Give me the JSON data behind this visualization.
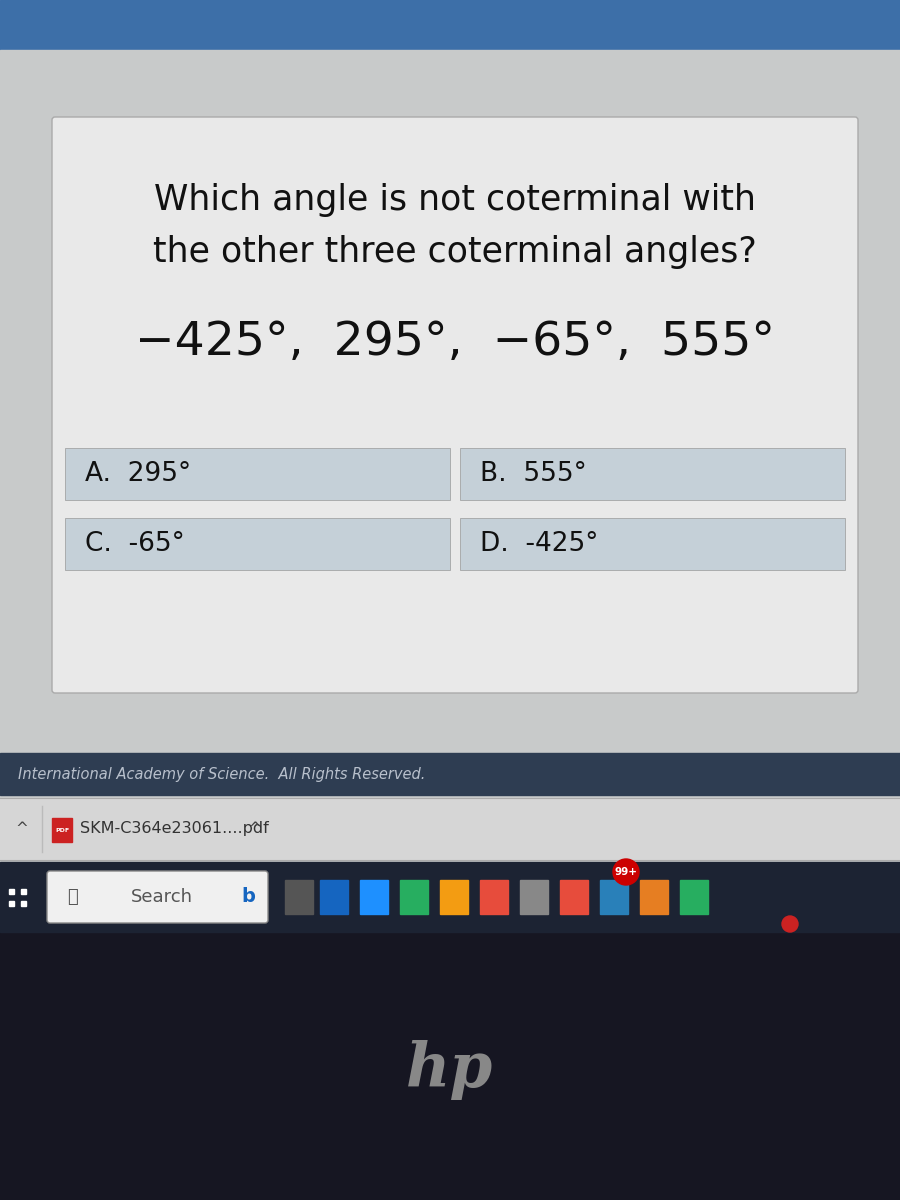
{
  "bg_top_color": "#3d6fa8",
  "bg_main_color": "#c8caca",
  "card_bg_color": "#e8e8e8",
  "question_text_line1": "Which angle is not coterminal with",
  "question_text_line2": "the other three coterminal angles?",
  "angles_text": "−425°,  295°,  −65°,  555°",
  "answer_A": "A.  295°",
  "answer_B": "B.  555°",
  "answer_C": "C.  -65°",
  "answer_D": "D.  -425°",
  "footer_text": "International Academy of Science.  All Rights Reserved.",
  "footer_bg": "#2e3d52",
  "taskbar_light_bg": "#d4d4d4",
  "taskbar_text": "SKM-C364e23061....pdf",
  "search_text": "Search",
  "answer_bg": "#c5d0d8",
  "answer_border": "#aaaaaa",
  "win_taskbar_bg": "#1c2333",
  "bottom_bg": "#161622",
  "hp_color": "#888888",
  "question_fontsize": 25,
  "angles_fontsize": 34,
  "answer_fontsize": 19
}
